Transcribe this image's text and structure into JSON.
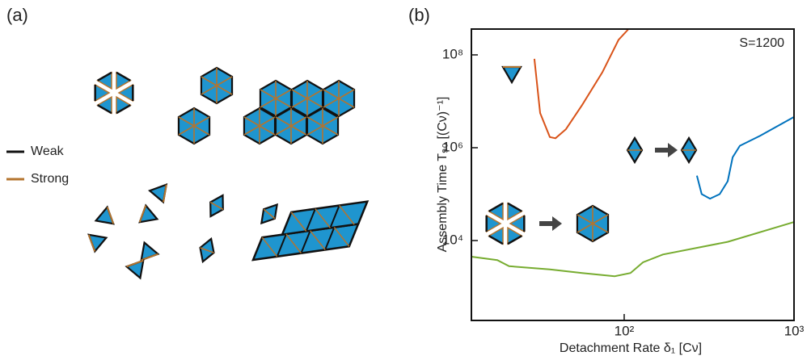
{
  "panel_labels": [
    "(a)",
    "(b)"
  ],
  "legend_a": [
    "Weak",
    "Strong"
  ],
  "chart_data": {
    "type": "line",
    "x_label": "Detachment Rate  δ₁  [Cν]",
    "y_label": "Assembly Time T₉₀  [(Cν)⁻¹]",
    "annotations": [
      "S=1200"
    ],
    "xscale": "log",
    "yscale": "log",
    "xlim": [
      12.6,
      1000
    ],
    "ylim": [
      190,
      360000000
    ],
    "xticks": [
      {
        "value": 100,
        "label": "10²"
      },
      {
        "value": 1000,
        "label": "10³"
      }
    ],
    "yticks": [
      {
        "value": 10000,
        "label": "10⁴"
      },
      {
        "value": 1000000,
        "label": "10⁶"
      },
      {
        "value": 100000000,
        "label": "10⁸"
      }
    ],
    "series": [
      {
        "color": "#d95319",
        "x": [
          29.6,
          32,
          36.5,
          39.4,
          45.4,
          56.5,
          74.3,
          92.6,
          106
        ],
        "values": [
          82000000,
          5600000,
          1700000,
          1600000,
          2500000,
          8300000,
          42000000,
          210000000,
          360000000
        ]
      },
      {
        "color": "#0072bd",
        "x": [
          268,
          286,
          320,
          365,
          407,
          435,
          480,
          631,
          1000
        ],
        "values": [
          250000,
          100000,
          80000,
          100000,
          190000,
          620000,
          1100000,
          1800000,
          4600000
        ]
      },
      {
        "color": "#77ac30",
        "x": [
          12.6,
          17.9,
          21,
          36.5,
          56.5,
          87.7,
          109,
          129,
          169,
          407,
          1000
        ],
        "values": [
          4500,
          3800,
          2800,
          2400,
          2000,
          1700,
          2000,
          3400,
          5000,
          9400,
          25000
        ]
      }
    ]
  }
}
